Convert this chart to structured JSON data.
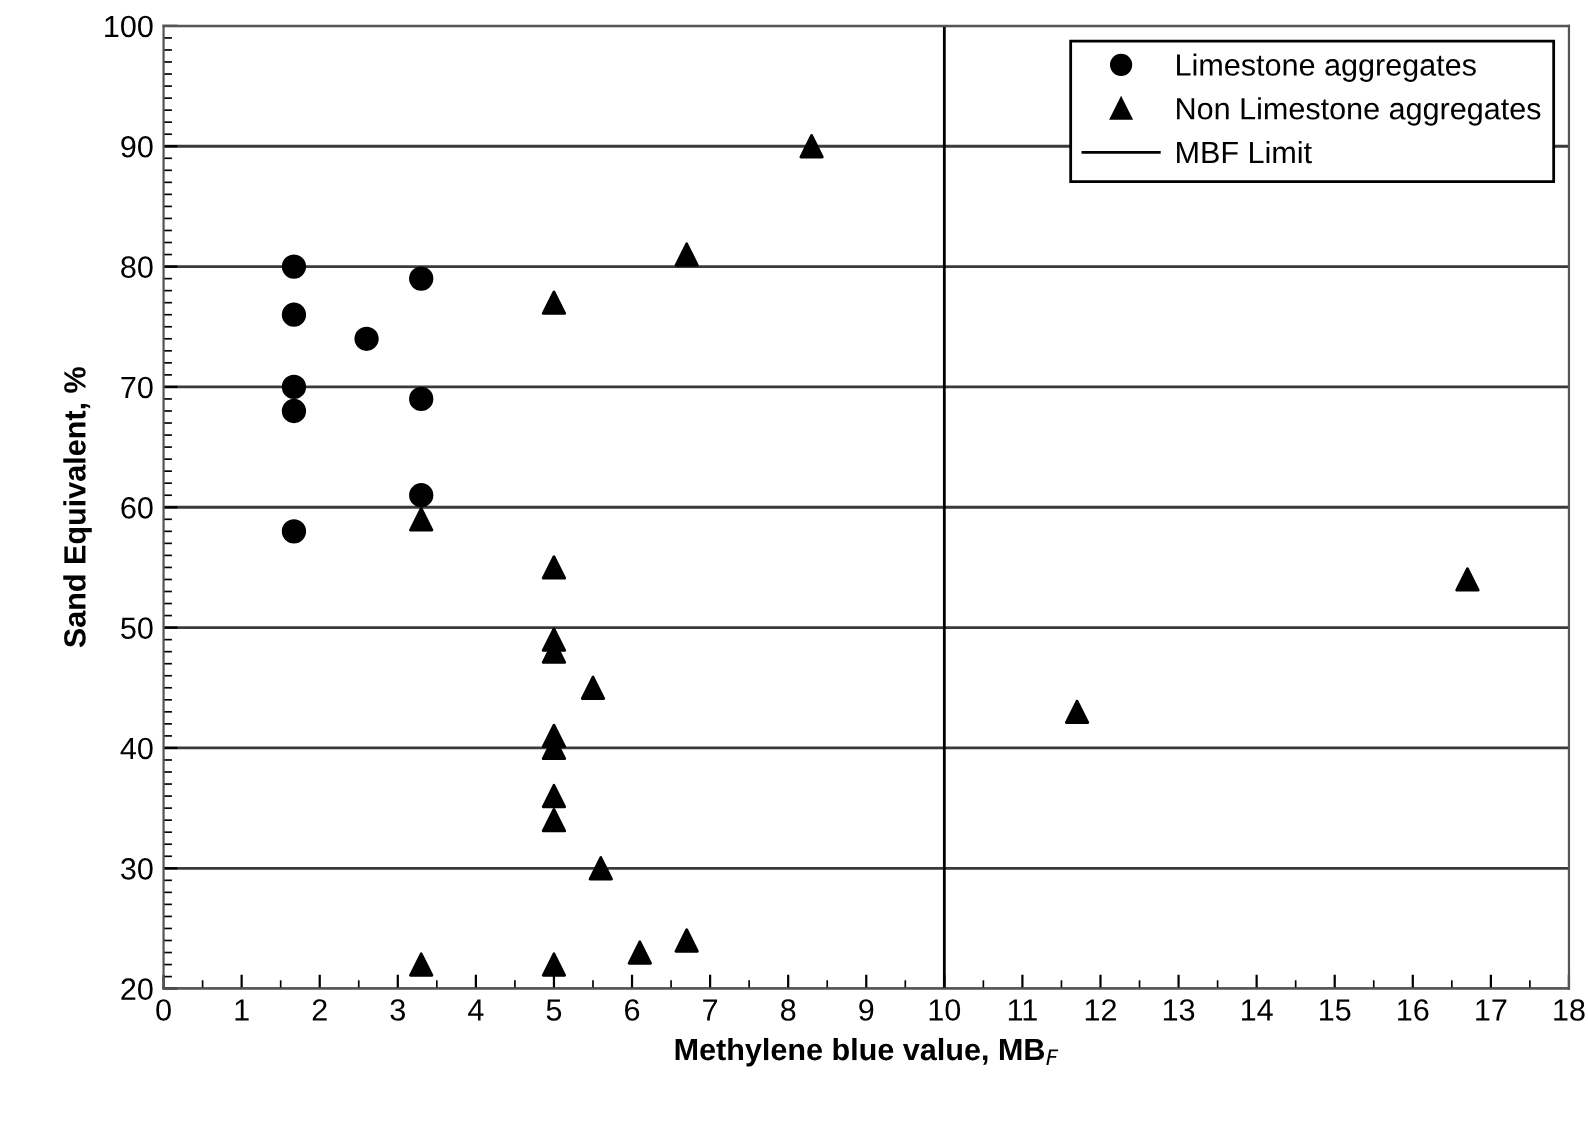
{
  "chart_data": {
    "type": "scatter",
    "xlabel": "Methylene blue value, MB$_{F}$",
    "ylabel": "Sand Equivalent, %",
    "series": [
      {
        "name": "Limestone aggregates",
        "color": "#000000",
        "marker": "circle",
        "x": [
          1.67,
          1.67,
          1.67,
          1.67,
          1.67,
          2.6,
          3.3,
          3.3,
          3.3
        ],
        "values": [
          80,
          76,
          70,
          68,
          58,
          74,
          79,
          69,
          61
        ]
      },
      {
        "name": "Non Limestone aggregates",
        "color": "#000000",
        "marker": "triangle",
        "x": [
          8.3,
          6.7,
          5,
          3.3,
          5,
          5,
          5,
          5.5,
          5,
          5,
          5,
          5,
          5.6,
          3.3,
          5,
          6.1,
          6.7,
          11.7,
          16.7
        ],
        "values": [
          90,
          81,
          77,
          59,
          55,
          49,
          48,
          45,
          41,
          40,
          36,
          34,
          30,
          22,
          22,
          23,
          24,
          43,
          54
        ]
      },
      {
        "name": "MBF Limit",
        "type": "line",
        "color": "#000000",
        "line_style": "solid",
        "x": [
          10,
          10
        ],
        "values": [
          20,
          100
        ]
      }
    ],
    "xlim": [
      0,
      18
    ],
    "xticks": [
      0,
      1,
      2,
      3,
      4,
      5,
      6,
      7,
      8,
      9,
      10,
      11,
      12,
      13,
      14,
      15,
      16,
      17,
      18
    ],
    "ylim": [
      20,
      100
    ],
    "yticks": [
      20,
      30,
      40,
      50,
      60,
      70,
      80,
      90,
      100
    ],
    "grid": "y",
    "legend": "top right"
  }
}
